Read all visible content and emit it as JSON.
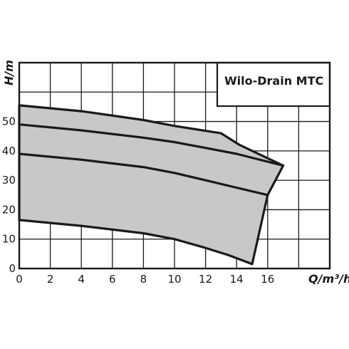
{
  "chart_data": {
    "type": "line",
    "title": "Wilo-Drain MTC",
    "xlabel": "Q/m³/h",
    "ylabel": "H/m",
    "xlim": [
      0,
      20
    ],
    "ylim": [
      0,
      70
    ],
    "x_ticks": [
      0,
      2,
      4,
      6,
      8,
      10,
      12,
      14,
      16
    ],
    "y_ticks": [
      0,
      10,
      20,
      30,
      40,
      50
    ],
    "grid": true,
    "colors": {
      "curve": "#1a1a1a",
      "envelope_fill": "#c8c8c8",
      "grid": "#1a1a1a"
    },
    "envelope": {
      "upper": {
        "x": [
          0,
          4,
          8,
          10,
          13,
          14.2,
          17
        ],
        "y": [
          55.5,
          53.5,
          50.5,
          48.5,
          46,
          42,
          35
        ]
      },
      "right": {
        "x": [
          17,
          16,
          15
        ],
        "y": [
          35,
          25,
          1.5
        ]
      },
      "lower": {
        "x": [
          0,
          4,
          8,
          10,
          12,
          13.5,
          15
        ],
        "y": [
          16.5,
          14.5,
          12,
          10,
          7,
          4.5,
          1.5
        ]
      }
    },
    "series": [
      {
        "x": [
          0,
          4,
          8,
          10,
          12,
          14,
          17
        ],
        "y": [
          49,
          47,
          44.5,
          43,
          41,
          39,
          35
        ]
      },
      {
        "x": [
          0,
          4,
          8,
          10,
          12,
          14,
          16
        ],
        "y": [
          39,
          37,
          34.5,
          32.5,
          30,
          27.5,
          25
        ]
      }
    ]
  }
}
